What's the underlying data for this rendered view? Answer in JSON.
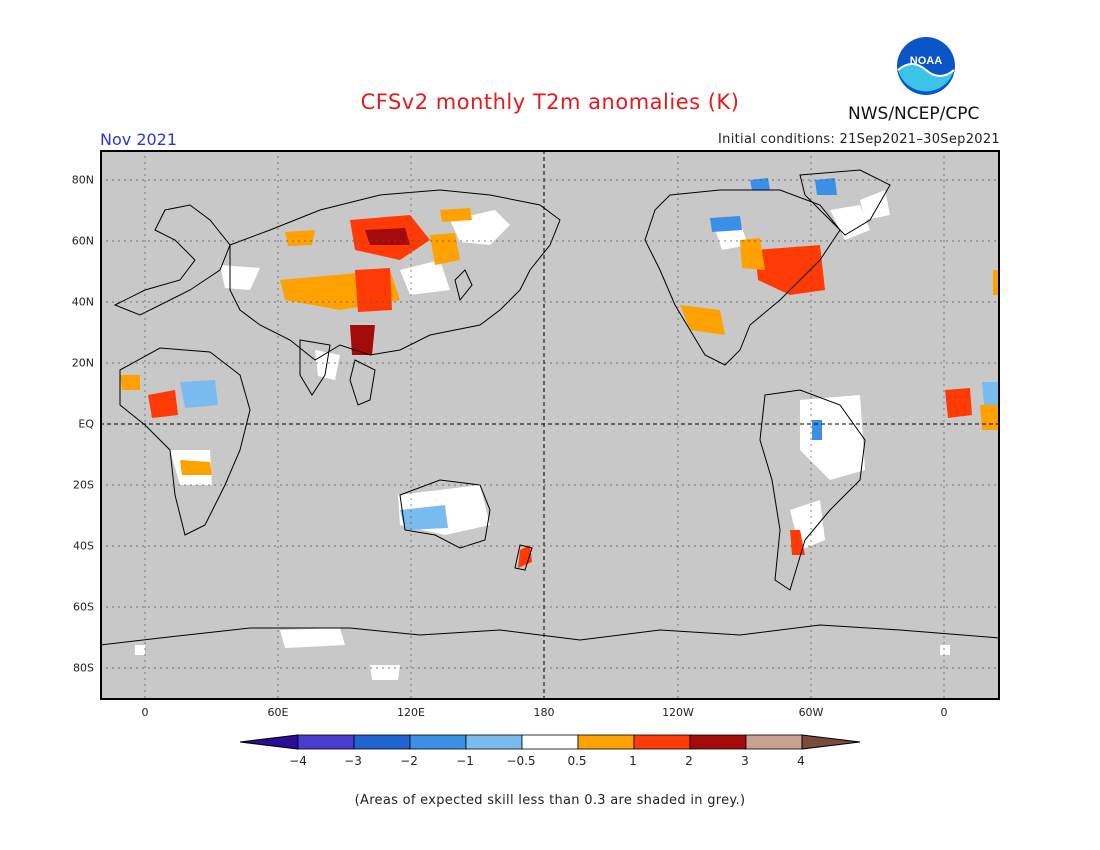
{
  "header": {
    "title": "CFSv2 monthly T2m anomalies (K)",
    "agency": "NWS/NCEP/CPC",
    "logo_text": "NOAA",
    "month": "Nov 2021",
    "initial_conditions": "Initial conditions: 21Sep2021–30Sep2021"
  },
  "map": {
    "projection": "equirectangular, centered on 180",
    "lat_labels": [
      "80N",
      "60N",
      "40N",
      "20N",
      "EQ",
      "20S",
      "40S",
      "60S",
      "80S"
    ],
    "lon_labels": [
      "0",
      "60E",
      "120E",
      "180",
      "120W",
      "60W",
      "0"
    ],
    "ocean_color": "#c8c8c8",
    "coast_color": "#000000",
    "grid_style": "dotted"
  },
  "colorbar": {
    "tick_labels": [
      "−4",
      "−3",
      "−2",
      "−1",
      "−0.5",
      "0.5",
      "1",
      "2",
      "3",
      "4"
    ],
    "colors": [
      "#2a0d9a",
      "#4a3ccc",
      "#1f64d2",
      "#3b8fe6",
      "#7bbcf0",
      "#ffffff",
      "#ffa100",
      "#ff3a05",
      "#a50a0a",
      "#c8a191",
      "#7a4b3a"
    ]
  },
  "footer_note": "(Areas of expected skill less than 0.3 are shaded in grey.)"
}
